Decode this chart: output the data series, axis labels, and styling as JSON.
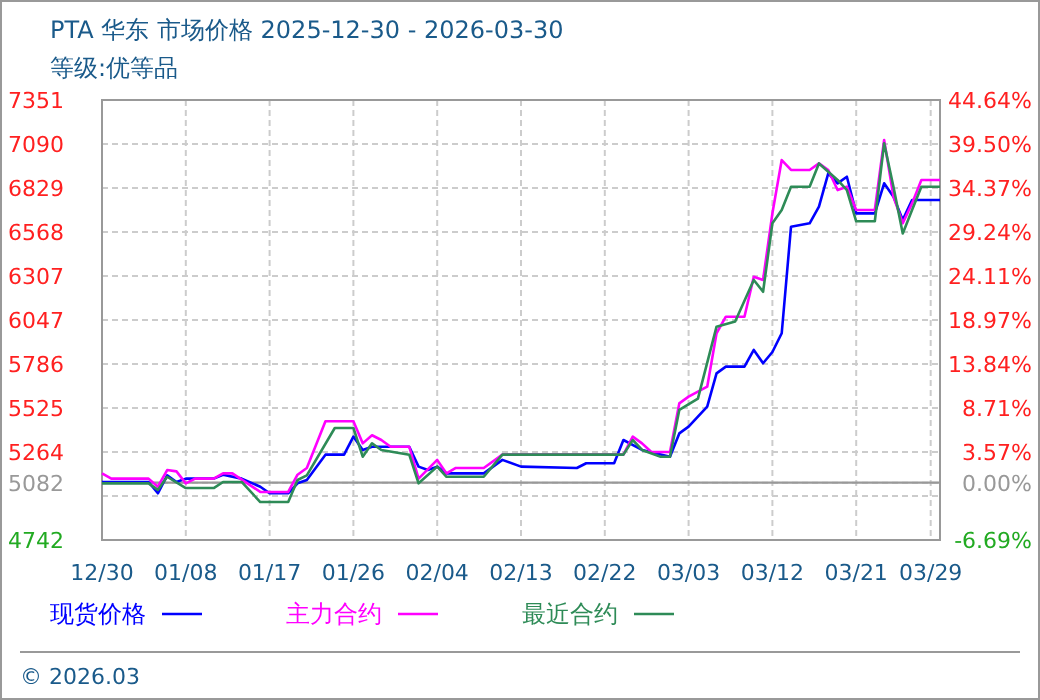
{
  "chart_data": {
    "type": "line",
    "title": "PTA 华东 市场价格 2025-12-30 - 2026-03-30",
    "subtitle": "等级:优等品",
    "series": [
      {
        "name": "现货价格",
        "color": "#0000ff",
        "x": [
          "2025-12-30",
          "2026-01-04",
          "2026-01-05",
          "2026-01-06",
          "2026-01-07",
          "2026-01-08",
          "2026-01-11",
          "2026-01-12",
          "2026-01-14",
          "2026-01-16",
          "2026-01-17",
          "2026-01-19",
          "2026-01-20",
          "2026-01-21",
          "2026-01-23",
          "2026-01-25",
          "2026-01-26",
          "2026-01-27",
          "2026-01-28",
          "2026-02-01",
          "2026-02-02",
          "2026-02-03",
          "2026-02-04",
          "2026-02-05",
          "2026-02-09",
          "2026-02-11",
          "2026-02-13",
          "2026-02-19",
          "2026-02-20",
          "2026-02-23",
          "2026-02-24",
          "2026-02-26",
          "2026-03-01",
          "2026-03-02",
          "2026-03-03",
          "2026-03-05",
          "2026-03-06",
          "2026-03-07",
          "2026-03-09",
          "2026-03-10",
          "2026-03-11",
          "2026-03-12",
          "2026-03-13",
          "2026-03-14",
          "2026-03-16",
          "2026-03-17",
          "2026-03-18",
          "2026-03-19",
          "2026-03-20",
          "2026-03-21",
          "2026-03-23",
          "2026-03-24",
          "2026-03-25",
          "2026-03-26",
          "2026-03-27",
          "2026-03-30"
        ],
        "values": [
          5086,
          5086,
          5019,
          5125,
          5086,
          5106,
          5106,
          5129,
          5106,
          5058,
          5019,
          5019,
          5078,
          5098,
          5248,
          5248,
          5355,
          5276,
          5295,
          5295,
          5177,
          5157,
          5177,
          5137,
          5137,
          5217,
          5177,
          5169,
          5197,
          5197,
          5335,
          5276,
          5236,
          5374,
          5414,
          5533,
          5730,
          5770,
          5770,
          5869,
          5790,
          5857,
          5968,
          6600,
          6620,
          6719,
          6916,
          6857,
          6896,
          6679,
          6679,
          6857,
          6778,
          6640,
          6758,
          6758
        ]
      },
      {
        "name": "主力合约",
        "color": "#ff00ff",
        "x": [
          "2025-12-30",
          "2025-12-31",
          "2026-01-04",
          "2026-01-05",
          "2026-01-06",
          "2026-01-07",
          "2026-01-08",
          "2026-01-09",
          "2026-01-11",
          "2026-01-12",
          "2026-01-13",
          "2026-01-16",
          "2026-01-19",
          "2026-01-20",
          "2026-01-21",
          "2026-01-23",
          "2026-01-26",
          "2026-01-27",
          "2026-01-28",
          "2026-01-29",
          "2026-01-30",
          "2026-02-01",
          "2026-02-02",
          "2026-02-04",
          "2026-02-05",
          "2026-02-06",
          "2026-02-09",
          "2026-02-11",
          "2026-02-24",
          "2026-02-25",
          "2026-02-26",
          "2026-02-27",
          "2026-03-01",
          "2026-03-02",
          "2026-03-03",
          "2026-03-05",
          "2026-03-06",
          "2026-03-07",
          "2026-03-09",
          "2026-03-10",
          "2026-03-11",
          "2026-03-12",
          "2026-03-13",
          "2026-03-14",
          "2026-03-16",
          "2026-03-17",
          "2026-03-18",
          "2026-03-19",
          "2026-03-20",
          "2026-03-21",
          "2026-03-23",
          "2026-03-24",
          "2026-03-25",
          "2026-03-26",
          "2026-03-27",
          "2026-03-28",
          "2026-03-30"
        ],
        "values": [
          5137,
          5106,
          5106,
          5058,
          5157,
          5149,
          5078,
          5106,
          5106,
          5137,
          5137,
          5027,
          5027,
          5129,
          5169,
          5446,
          5446,
          5315,
          5363,
          5335,
          5295,
          5295,
          5106,
          5217,
          5137,
          5169,
          5169,
          5248,
          5248,
          5355,
          5315,
          5264,
          5264,
          5552,
          5592,
          5651,
          5968,
          6066,
          6066,
          6303,
          6284,
          6679,
          6995,
          6936,
          6936,
          6975,
          6936,
          6817,
          6837,
          6699,
          6699,
          7114,
          6778,
          6620,
          6738,
          6877,
          6877
        ]
      },
      {
        "name": "最近合约",
        "color": "#2e8b57",
        "x": [
          "2025-12-30",
          "2026-01-04",
          "2026-01-05",
          "2026-01-06",
          "2026-01-08",
          "2026-01-11",
          "2026-01-12",
          "2026-01-14",
          "2026-01-16",
          "2026-01-19",
          "2026-01-20",
          "2026-01-21",
          "2026-01-24",
          "2026-01-26",
          "2026-01-27",
          "2026-01-28",
          "2026-01-29",
          "2026-02-01",
          "2026-02-02",
          "2026-02-04",
          "2026-02-05",
          "2026-02-09",
          "2026-02-11",
          "2026-02-24",
          "2026-02-25",
          "2026-02-26",
          "2026-02-28",
          "2026-03-01",
          "2026-03-02",
          "2026-03-04",
          "2026-03-06",
          "2026-03-08",
          "2026-03-10",
          "2026-03-11",
          "2026-03-12",
          "2026-03-13",
          "2026-03-14",
          "2026-03-16",
          "2026-03-17",
          "2026-03-19",
          "2026-03-20",
          "2026-03-21",
          "2026-03-23",
          "2026-03-24",
          "2026-03-25",
          "2026-03-26",
          "2026-03-27",
          "2026-03-28",
          "2026-03-30"
        ],
        "values": [
          5078,
          5078,
          5039,
          5117,
          5050,
          5050,
          5086,
          5086,
          4967,
          4967,
          5098,
          5125,
          5406,
          5406,
          5236,
          5315,
          5276,
          5248,
          5078,
          5177,
          5117,
          5117,
          5248,
          5248,
          5335,
          5276,
          5236,
          5236,
          5513,
          5580,
          6007,
          6038,
          6284,
          6214,
          6620,
          6699,
          6837,
          6837,
          6975,
          6877,
          6817,
          6632,
          6632,
          7094,
          6837,
          6560,
          6699,
          6837,
          6837
        ]
      }
    ],
    "xlim": [
      "2025-12-30",
      "2026-03-30"
    ],
    "xticks": [
      {
        "value": "2025-12-30",
        "label": "12/30"
      },
      {
        "value": "2026-01-08",
        "label": "01/08"
      },
      {
        "value": "2026-01-17",
        "label": "01/17"
      },
      {
        "value": "2026-01-26",
        "label": "01/26"
      },
      {
        "value": "2026-02-04",
        "label": "02/04"
      },
      {
        "value": "2026-02-13",
        "label": "02/13"
      },
      {
        "value": "2026-02-22",
        "label": "02/22"
      },
      {
        "value": "2026-03-03",
        "label": "03/03"
      },
      {
        "value": "2026-03-12",
        "label": "03/12"
      },
      {
        "value": "2026-03-21",
        "label": "03/21"
      },
      {
        "value": "2026-03-29",
        "label": "03/29"
      }
    ],
    "ylim": [
      4742,
      7351
    ],
    "yticks": [
      4742,
      {
        "value": 5003,
        "label": null
      },
      5082,
      5264,
      5525,
      5786,
      6047,
      6307,
      6568,
      6829,
      7090,
      7351
    ],
    "y2lim": [
      -6.69,
      44.64
    ],
    "y2ticks": [
      {
        "value": -6.69,
        "label": "-6.69%"
      },
      {
        "value": 0,
        "label": "0.00%"
      },
      {
        "value": 3.57,
        "label": "3.57%"
      },
      {
        "value": 8.71,
        "label": "8.71%"
      },
      {
        "value": 13.84,
        "label": "13.84%"
      },
      {
        "value": 18.97,
        "label": "18.97%"
      },
      {
        "value": 24.11,
        "label": "24.11%"
      },
      {
        "value": 29.24,
        "label": "29.24%"
      },
      {
        "value": 34.37,
        "label": "34.37%"
      },
      {
        "value": 39.5,
        "label": "39.50%"
      },
      {
        "value": 44.64,
        "label": "44.64%"
      }
    ],
    "ref_lines": [
      {
        "axis": "y",
        "value": 5082,
        "color": "#999999"
      }
    ],
    "grid": true,
    "legend": "bottom",
    "annotations": [
      "© 2026.03"
    ]
  }
}
